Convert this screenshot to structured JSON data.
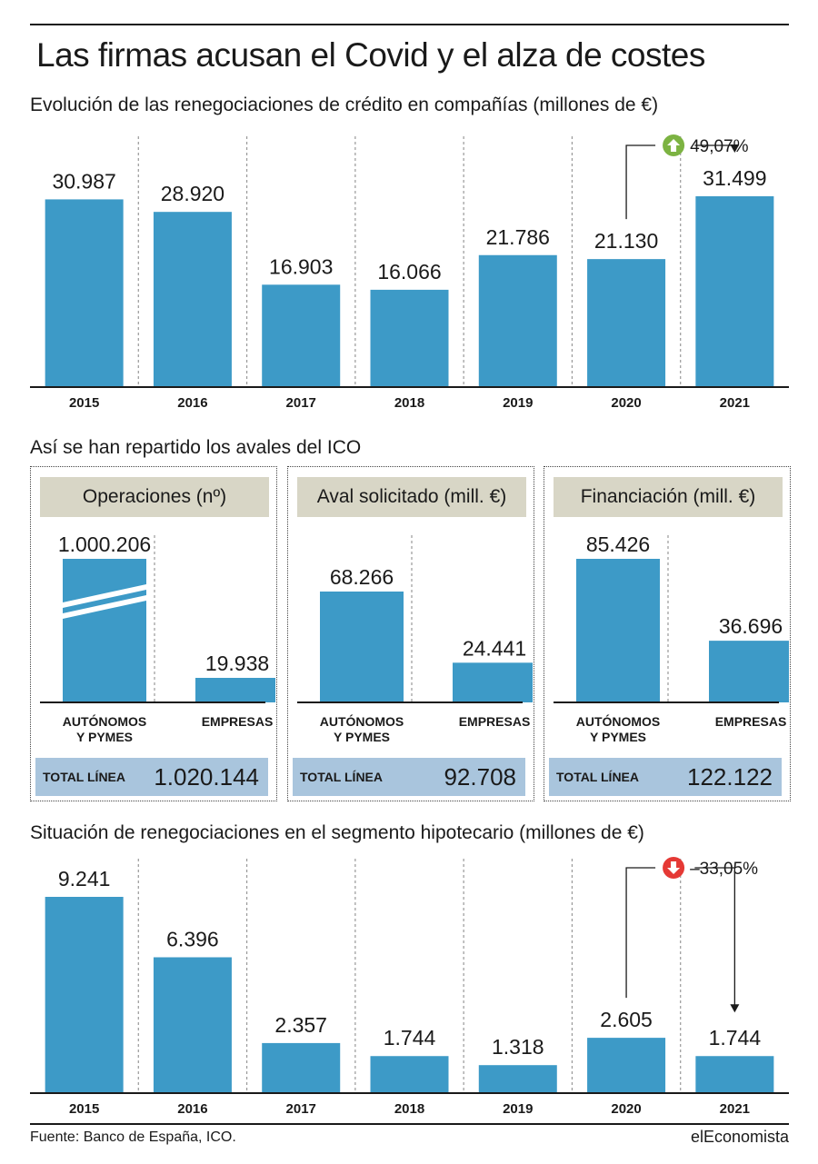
{
  "title": "Las firmas acusan el Covid y el alza de costes",
  "footer": {
    "source": "Fuente: Banco de España, ICO.",
    "brand": "elEconomista"
  },
  "colors": {
    "bar": "#3d9ac7",
    "panel_header": "#d8d6c6",
    "total_bar": "#a9c5dd",
    "up_badge": "#7cb342",
    "down_badge": "#e53935"
  },
  "chart_data": [
    {
      "type": "bar",
      "title": "Evolución de las renegociaciones de crédito en compañías (millones de €)",
      "categories": [
        "2015",
        "2016",
        "2017",
        "2018",
        "2019",
        "2020",
        "2021"
      ],
      "values": [
        30987,
        28920,
        16903,
        16066,
        21786,
        21130,
        31499
      ],
      "value_labels": [
        "30.987",
        "28.920",
        "16.903",
        "16.066",
        "21.786",
        "21.130",
        "31.499"
      ],
      "annotation": {
        "text": "49,07%",
        "from": "2020",
        "to": "2021",
        "direction": "up",
        "icon": "up-arrow-icon"
      },
      "ylim": [
        0,
        31499
      ]
    },
    {
      "type": "bar",
      "title": "Así se han repartido los avales del ICO",
      "panels": [
        {
          "header": "Operaciones (nº)",
          "categories": [
            "AUTÓNOMOS\nY PYMES",
            "EMPRESAS"
          ],
          "values": [
            1000206,
            19938
          ],
          "value_labels": [
            "1.000.206",
            "19.938"
          ],
          "axis_break": true,
          "total_label": "TOTAL LÍNEA",
          "total_value": "1.020.144"
        },
        {
          "header": "Aval solicitado (mill. €)",
          "categories": [
            "AUTÓNOMOS\nY PYMES",
            "EMPRESAS"
          ],
          "values": [
            68266,
            24441
          ],
          "value_labels": [
            "68.266",
            "24.441"
          ],
          "total_label": "TOTAL LÍNEA",
          "total_value": "92.708"
        },
        {
          "header": "Financiación (mill. €)",
          "categories": [
            "AUTÓNOMOS\nY PYMES",
            "EMPRESAS"
          ],
          "values": [
            85426,
            36696
          ],
          "value_labels": [
            "85.426",
            "36.696"
          ],
          "total_label": "TOTAL LÍNEA",
          "total_value": "122.122"
        }
      ]
    },
    {
      "type": "bar",
      "title": "Situación de renegociaciones en el segmento hipotecario (millones de €)",
      "categories": [
        "2015",
        "2016",
        "2017",
        "2018",
        "2019",
        "2020",
        "2021"
      ],
      "values": [
        9241,
        6396,
        2357,
        1744,
        1318,
        2605,
        1744
      ],
      "value_labels": [
        "9.241",
        "6.396",
        "2.357",
        "1.744",
        "1.318",
        "2.605",
        "1.744"
      ],
      "annotation": {
        "text": "–33,05%",
        "from": "2020",
        "to": "2021",
        "direction": "down",
        "icon": "down-arrow-icon"
      },
      "ylim": [
        0,
        9241
      ]
    }
  ]
}
